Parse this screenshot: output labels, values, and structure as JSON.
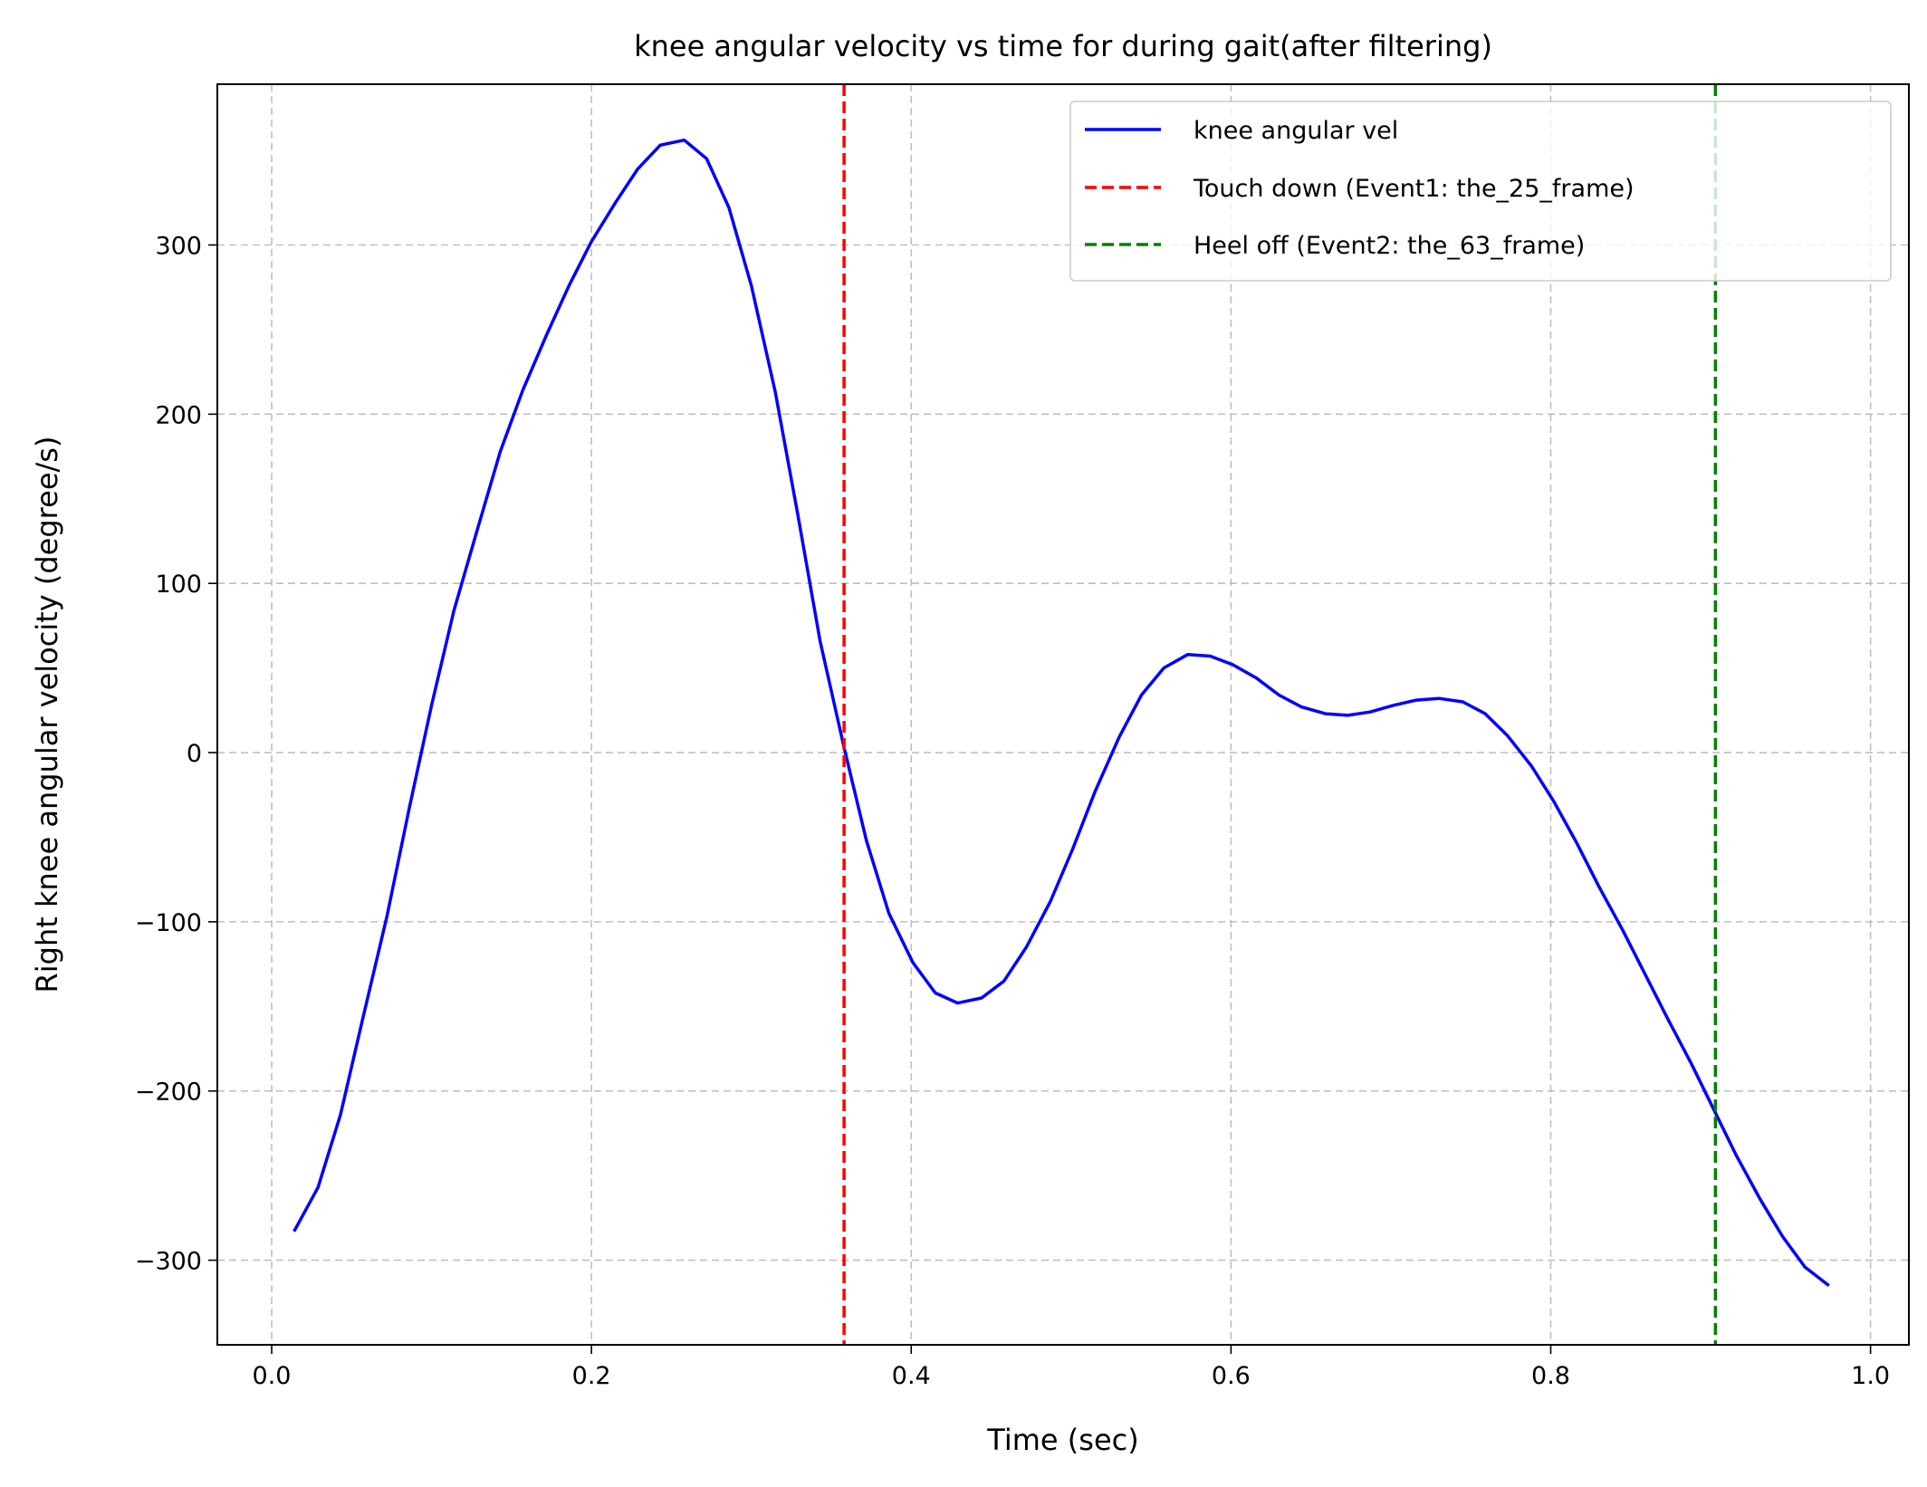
{
  "chart_data": {
    "type": "line",
    "title": "knee angular velocity vs time for during gait(after filtering)",
    "xlabel": "Time (sec)",
    "ylabel": "Right knee angular velocity  (degree/s)",
    "xlim": [
      -0.034,
      1.024
    ],
    "ylim": [
      -350,
      395
    ],
    "xticks": [
      0.0,
      0.2,
      0.4,
      0.6,
      0.8,
      1.0
    ],
    "xtick_labels": [
      "0.0",
      "0.2",
      "0.4",
      "0.6",
      "0.8",
      "1.0"
    ],
    "yticks": [
      -300,
      -200,
      -100,
      0,
      100,
      200,
      300
    ],
    "ytick_labels": [
      "−300",
      "−200",
      "−100",
      "0",
      "100",
      "200",
      "300"
    ],
    "grid": true,
    "legend_position": "top-right",
    "series": [
      {
        "name": "knee angular vel",
        "color": "#0000ff",
        "style": "solid",
        "x": [
          0.014,
          0.029,
          0.043,
          0.057,
          0.072,
          0.086,
          0.1,
          0.114,
          0.129,
          0.143,
          0.157,
          0.172,
          0.186,
          0.2,
          0.215,
          0.229,
          0.243,
          0.258,
          0.272,
          0.286,
          0.3,
          0.315,
          0.329,
          0.343,
          0.358,
          0.372,
          0.386,
          0.401,
          0.415,
          0.429,
          0.444,
          0.458,
          0.472,
          0.487,
          0.501,
          0.515,
          0.53,
          0.544,
          0.558,
          0.573,
          0.587,
          0.601,
          0.616,
          0.63,
          0.644,
          0.659,
          0.673,
          0.687,
          0.702,
          0.716,
          0.73,
          0.745,
          0.759,
          0.773,
          0.788,
          0.802,
          0.816,
          0.83,
          0.845,
          0.859,
          0.873,
          0.888,
          0.902,
          0.916,
          0.931,
          0.945,
          0.959,
          0.974
        ],
        "y": [
          -283,
          -257,
          -214,
          -157,
          -97,
          -33,
          28,
          84,
          133,
          178,
          214,
          247,
          276,
          302,
          325,
          345,
          359,
          362,
          351,
          322,
          276,
          213,
          141,
          66,
          3,
          -52,
          -95,
          -124,
          -142,
          -148,
          -145,
          -135,
          -115,
          -88,
          -57,
          -23,
          9,
          34,
          50,
          58,
          57,
          52,
          44,
          34,
          27,
          23,
          22,
          24,
          28,
          31,
          32,
          30,
          23,
          10,
          -8,
          -29,
          -53,
          -79,
          -105,
          -131,
          -157,
          -184,
          -211,
          -238,
          -264,
          -286,
          -304,
          -315
        ]
      },
      {
        "name": "Touch down (Event1: the_25_frame)",
        "color": "#ff0000",
        "style": "dashed",
        "x_value": 0.358
      },
      {
        "name": "Heel off (Event2: the_63_frame)",
        "color": "#008000",
        "style": "dashed",
        "x_value": 0.903
      }
    ]
  }
}
